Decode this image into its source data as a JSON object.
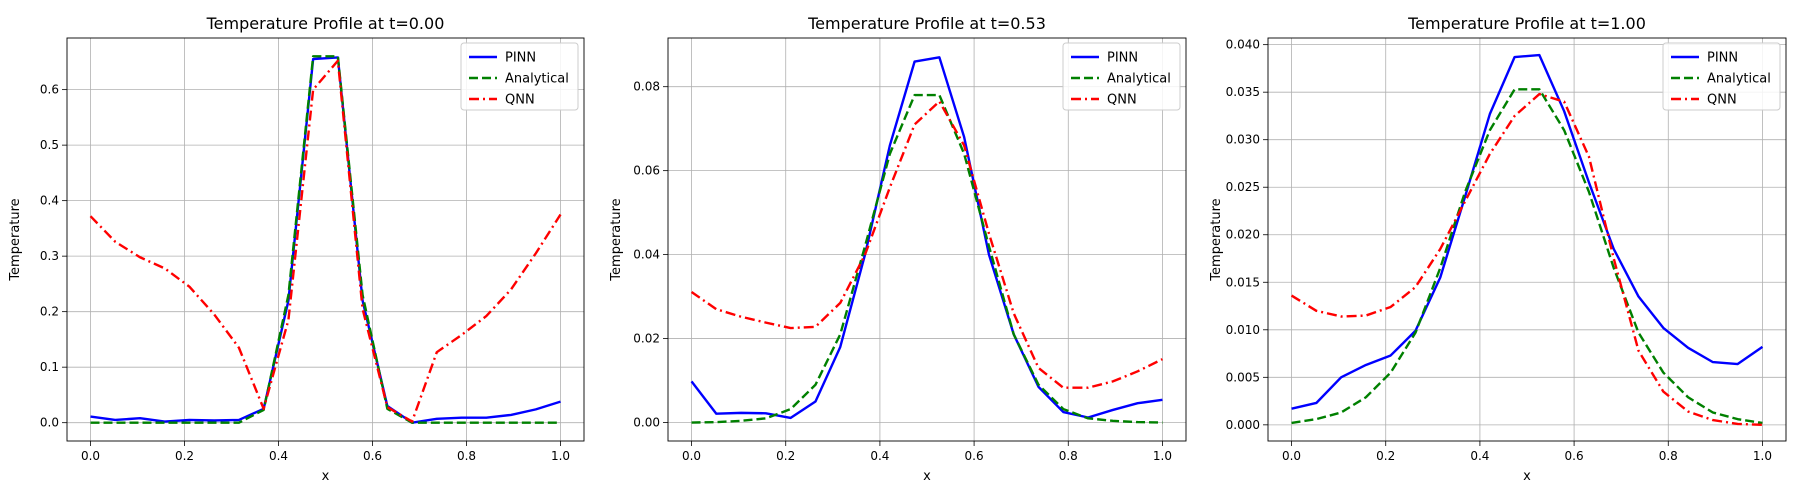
{
  "chart_data": [
    {
      "type": "line",
      "title": "Temperature Profile at t=0.00",
      "xlabel": "x",
      "ylabel": "Temperature",
      "xlim": [
        -0.05,
        1.05
      ],
      "ylim": [
        -0.033,
        0.693
      ],
      "xticks": [
        0.0,
        0.2,
        0.4,
        0.6,
        0.8,
        1.0
      ],
      "xtick_labels": [
        "0.0",
        "0.2",
        "0.4",
        "0.6",
        "0.8",
        "1.0"
      ],
      "yticks": [
        0.0,
        0.1,
        0.2,
        0.3,
        0.4,
        0.5,
        0.6
      ],
      "ytick_labels": [
        "0.0",
        "0.1",
        "0.2",
        "0.3",
        "0.4",
        "0.5",
        "0.6"
      ],
      "grid": true,
      "legend": "top-right",
      "x": [
        0.0,
        0.0526,
        0.1053,
        0.1579,
        0.2105,
        0.2632,
        0.3158,
        0.3684,
        0.4211,
        0.4737,
        0.5263,
        0.5789,
        0.6316,
        0.6842,
        0.7368,
        0.7895,
        0.8421,
        0.8947,
        0.9474,
        1.0
      ],
      "series": [
        {
          "name": "PINN",
          "color": "#0000ff",
          "dash": "solid",
          "values": [
            0.011,
            0.005,
            0.008,
            0.002,
            0.005,
            0.004,
            0.005,
            0.025,
            0.22,
            0.655,
            0.658,
            0.22,
            0.03,
            0.0,
            0.007,
            0.009,
            0.009,
            0.014,
            0.024,
            0.038
          ]
        },
        {
          "name": "Analytical",
          "color": "#008000",
          "dash": "dashed",
          "values": [
            0.0,
            0.0,
            0.0,
            0.0,
            0.0,
            0.0,
            0.0,
            0.023,
            0.23,
            0.66,
            0.66,
            0.23,
            0.025,
            0.0,
            0.0,
            0.0,
            0.0,
            0.0,
            0.0,
            0.0
          ]
        },
        {
          "name": "QNN",
          "color": "#ff0000",
          "dash": "dashdot",
          "values": [
            0.372,
            0.326,
            0.298,
            0.278,
            0.245,
            0.195,
            0.135,
            0.025,
            0.185,
            0.6,
            0.652,
            0.205,
            0.028,
            0.002,
            0.127,
            0.158,
            0.192,
            0.24,
            0.305,
            0.375
          ]
        }
      ]
    },
    {
      "type": "line",
      "title": "Temperature Profile at t=0.53",
      "xlabel": "x",
      "ylabel": "Temperature",
      "xlim": [
        -0.05,
        1.05
      ],
      "ylim": [
        -0.0044,
        0.0916
      ],
      "xticks": [
        0.0,
        0.2,
        0.4,
        0.6,
        0.8,
        1.0
      ],
      "xtick_labels": [
        "0.0",
        "0.2",
        "0.4",
        "0.6",
        "0.8",
        "1.0"
      ],
      "yticks": [
        0.0,
        0.02,
        0.04,
        0.06,
        0.08
      ],
      "ytick_labels": [
        "0.00",
        "0.02",
        "0.04",
        "0.06",
        "0.08"
      ],
      "grid": true,
      "legend": "top-right",
      "x": [
        0.0,
        0.0526,
        0.1053,
        0.1579,
        0.2105,
        0.2632,
        0.3158,
        0.3684,
        0.4211,
        0.4737,
        0.5263,
        0.5789,
        0.6316,
        0.6842,
        0.7368,
        0.7895,
        0.8421,
        0.8947,
        0.9474,
        1.0
      ],
      "series": [
        {
          "name": "PINN",
          "color": "#0000ff",
          "dash": "solid",
          "values": [
            0.0098,
            0.0021,
            0.0023,
            0.0022,
            0.0011,
            0.005,
            0.018,
            0.04,
            0.066,
            0.086,
            0.087,
            0.068,
            0.04,
            0.021,
            0.0085,
            0.0025,
            0.0012,
            0.003,
            0.0046,
            0.0054
          ]
        },
        {
          "name": "Analytical",
          "color": "#008000",
          "dash": "dashed",
          "values": [
            0.0,
            0.0001,
            0.0004,
            0.001,
            0.0032,
            0.009,
            0.021,
            0.042,
            0.064,
            0.078,
            0.078,
            0.064,
            0.042,
            0.021,
            0.009,
            0.0032,
            0.001,
            0.0004,
            0.0001,
            0.0
          ]
        },
        {
          "name": "QNN",
          "color": "#ff0000",
          "dash": "dashdot",
          "values": [
            0.0311,
            0.027,
            0.0252,
            0.0238,
            0.0225,
            0.0228,
            0.0285,
            0.04,
            0.056,
            0.071,
            0.0765,
            0.066,
            0.045,
            0.026,
            0.013,
            0.0083,
            0.0083,
            0.0098,
            0.0122,
            0.0151
          ]
        }
      ]
    },
    {
      "type": "line",
      "title": "Temperature Profile at t=1.00",
      "xlabel": "x",
      "ylabel": "Temperature",
      "xlim": [
        -0.05,
        1.05
      ],
      "ylim": [
        -0.0017,
        0.0407
      ],
      "xticks": [
        0.0,
        0.2,
        0.4,
        0.6,
        0.8,
        1.0
      ],
      "xtick_labels": [
        "0.0",
        "0.2",
        "0.4",
        "0.6",
        "0.8",
        "1.0"
      ],
      "yticks": [
        0.0,
        0.005,
        0.01,
        0.015,
        0.02,
        0.025,
        0.03,
        0.035,
        0.04
      ],
      "ytick_labels": [
        "0.000",
        "0.005",
        "0.010",
        "0.015",
        "0.020",
        "0.025",
        "0.030",
        "0.035",
        "0.040"
      ],
      "grid": true,
      "legend": "top-right",
      "x": [
        0.0,
        0.0526,
        0.1053,
        0.1579,
        0.2105,
        0.2632,
        0.3158,
        0.3684,
        0.4211,
        0.4737,
        0.5263,
        0.5789,
        0.6316,
        0.6842,
        0.7368,
        0.7895,
        0.8421,
        0.8947,
        0.9474,
        1.0
      ],
      "series": [
        {
          "name": "PINN",
          "color": "#0000ff",
          "dash": "solid",
          "values": [
            0.0017,
            0.0023,
            0.005,
            0.0063,
            0.0073,
            0.0099,
            0.0155,
            0.024,
            0.0327,
            0.0387,
            0.0389,
            0.033,
            0.0255,
            0.0185,
            0.0135,
            0.0102,
            0.0081,
            0.0066,
            0.0064,
            0.0082
          ]
        },
        {
          "name": "Analytical",
          "color": "#008000",
          "dash": "dashed",
          "values": [
            0.0002,
            0.0006,
            0.0013,
            0.0029,
            0.0055,
            0.0097,
            0.0165,
            0.0245,
            0.031,
            0.0353,
            0.0353,
            0.031,
            0.0245,
            0.0165,
            0.0097,
            0.0055,
            0.0029,
            0.0013,
            0.0006,
            0.0002
          ]
        },
        {
          "name": "QNN",
          "color": "#ff0000",
          "dash": "dashdot",
          "values": [
            0.0136,
            0.012,
            0.0114,
            0.0115,
            0.0124,
            0.0145,
            0.0185,
            0.0235,
            0.0285,
            0.0325,
            0.0348,
            0.034,
            0.0282,
            0.0175,
            0.0078,
            0.0035,
            0.0014,
            0.0005,
            0.0001,
            0.0
          ]
        }
      ]
    }
  ]
}
